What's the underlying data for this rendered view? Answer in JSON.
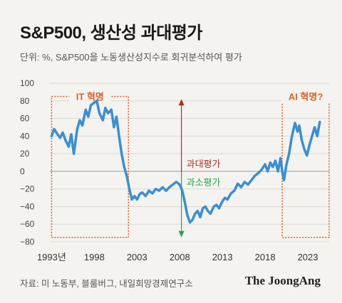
{
  "header": {
    "title": "S&P500, 생산성 과대평가",
    "subtitle": "단위: %, S&P500을 노동생산성지수로 회귀분석하여 평가"
  },
  "footer": {
    "source": "자료: 미 노동부, 블룸버그, 내일희망경제연구소",
    "brand": "The JoongAng"
  },
  "colors": {
    "line": "#3a8fd1",
    "highlight_box": "#d9622b",
    "over_arrow": "#a93226",
    "under_arrow": "#27a35a",
    "grid": "#d9d9d9"
  },
  "chart_data": {
    "type": "line",
    "title": "S&P500, 생산성 과대평가",
    "xlabel": "",
    "ylabel": "",
    "xlim": [
      1992.8,
      2025.5
    ],
    "ylim": [
      -80,
      100
    ],
    "x_ticks": [
      1993,
      1998,
      2003,
      2008,
      2013,
      2018,
      2023
    ],
    "x_tick_labels": [
      "1993년",
      "1998",
      "2003",
      "2008",
      "2013",
      "2018",
      "2023"
    ],
    "y_ticks": [
      100,
      80,
      60,
      40,
      20,
      0,
      -20,
      -40,
      -60,
      -80
    ],
    "y_tick_labels": [
      "100",
      "80",
      "60",
      "40",
      "20",
      "0",
      "−20",
      "−40",
      "−60",
      "−80"
    ],
    "grid": true,
    "annotations": [
      {
        "text": "IT 혁명",
        "x_range": [
          1993,
          2002
        ],
        "y_range": [
          -75,
          85
        ]
      },
      {
        "text": "AI 혁명?",
        "x_range": [
          2020,
          2025.5
        ],
        "y_range": [
          -75,
          85
        ]
      },
      {
        "text": "과대평가",
        "arrow": "up",
        "x": 2008.2,
        "y_range": [
          0,
          82
        ]
      },
      {
        "text": "과소평가",
        "arrow": "down",
        "x": 2008.2,
        "y_range": [
          0,
          -75
        ]
      }
    ],
    "series": [
      {
        "values": [
          [
            1993.0,
            40
          ],
          [
            1993.3,
            48
          ],
          [
            1993.7,
            42
          ],
          [
            1994.0,
            38
          ],
          [
            1994.3,
            44
          ],
          [
            1994.6,
            36
          ],
          [
            1995.0,
            28
          ],
          [
            1995.3,
            42
          ],
          [
            1995.6,
            20
          ],
          [
            1996.0,
            48
          ],
          [
            1996.3,
            58
          ],
          [
            1996.6,
            52
          ],
          [
            1997.0,
            70
          ],
          [
            1997.3,
            62
          ],
          [
            1997.6,
            75
          ],
          [
            1998.0,
            78
          ],
          [
            1998.3,
            80
          ],
          [
            1998.6,
            66
          ],
          [
            1999.0,
            58
          ],
          [
            1999.3,
            72
          ],
          [
            1999.6,
            66
          ],
          [
            2000.0,
            70
          ],
          [
            2000.3,
            50
          ],
          [
            2000.6,
            62
          ],
          [
            2000.9,
            40
          ],
          [
            2001.2,
            20
          ],
          [
            2001.5,
            5
          ],
          [
            2001.8,
            -5
          ],
          [
            2002.1,
            -20
          ],
          [
            2002.4,
            -32
          ],
          [
            2002.7,
            -28
          ],
          [
            2003.0,
            -32
          ],
          [
            2003.3,
            -26
          ],
          [
            2003.6,
            -24
          ],
          [
            2004.0,
            -28
          ],
          [
            2004.4,
            -22
          ],
          [
            2004.8,
            -25
          ],
          [
            2005.2,
            -20
          ],
          [
            2005.6,
            -22
          ],
          [
            2006.0,
            -18
          ],
          [
            2006.4,
            -22
          ],
          [
            2006.8,
            -18
          ],
          [
            2007.2,
            -15
          ],
          [
            2007.6,
            -12
          ],
          [
            2008.0,
            -15
          ],
          [
            2008.3,
            -22
          ],
          [
            2008.6,
            -35
          ],
          [
            2008.9,
            -50
          ],
          [
            2009.2,
            -58
          ],
          [
            2009.5,
            -55
          ],
          [
            2009.8,
            -48
          ],
          [
            2010.1,
            -45
          ],
          [
            2010.4,
            -52
          ],
          [
            2010.7,
            -42
          ],
          [
            2011.0,
            -40
          ],
          [
            2011.3,
            -45
          ],
          [
            2011.6,
            -48
          ],
          [
            2012.0,
            -40
          ],
          [
            2012.3,
            -38
          ],
          [
            2012.6,
            -42
          ],
          [
            2013.0,
            -34
          ],
          [
            2013.3,
            -30
          ],
          [
            2013.6,
            -32
          ],
          [
            2014.0,
            -25
          ],
          [
            2014.4,
            -22
          ],
          [
            2014.8,
            -14
          ],
          [
            2015.2,
            -18
          ],
          [
            2015.6,
            -12
          ],
          [
            2016.0,
            -15
          ],
          [
            2016.4,
            -10
          ],
          [
            2016.8,
            -5
          ],
          [
            2017.2,
            -2
          ],
          [
            2017.6,
            2
          ],
          [
            2018.0,
            8
          ],
          [
            2018.3,
            0
          ],
          [
            2018.6,
            10
          ],
          [
            2018.9,
            5
          ],
          [
            2019.2,
            12
          ],
          [
            2019.5,
            0
          ],
          [
            2019.8,
            15
          ],
          [
            2020.0,
            0
          ],
          [
            2020.2,
            -10
          ],
          [
            2020.5,
            8
          ],
          [
            2020.8,
            20
          ],
          [
            2021.1,
            38
          ],
          [
            2021.5,
            55
          ],
          [
            2021.8,
            45
          ],
          [
            2022.0,
            52
          ],
          [
            2022.3,
            35
          ],
          [
            2022.6,
            25
          ],
          [
            2022.9,
            18
          ],
          [
            2023.2,
            30
          ],
          [
            2023.5,
            40
          ],
          [
            2023.8,
            50
          ],
          [
            2024.1,
            40
          ],
          [
            2024.4,
            56
          ]
        ]
      }
    ]
  }
}
